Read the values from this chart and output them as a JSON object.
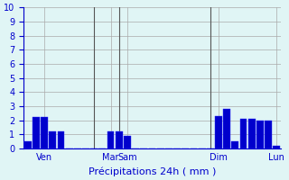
{
  "bar_values": [
    0.5,
    2.2,
    2.2,
    1.2,
    1.2,
    0,
    0,
    0,
    0,
    0,
    1.2,
    1.2,
    0.9,
    0,
    0,
    0,
    0,
    0,
    0,
    0,
    0,
    0,
    0,
    2.3,
    2.8,
    0.5,
    2.1,
    2.1,
    2.0,
    2.0,
    0.2
  ],
  "n_bars": 31,
  "day_labels": [
    "Ven",
    "Mar",
    "Sam",
    "Dim",
    "Lun"
  ],
  "day_positions": [
    2,
    10,
    12,
    23,
    30
  ],
  "vline_positions": [
    8,
    11,
    22
  ],
  "xlabel": "Précipitations 24h ( mm )",
  "ylim": [
    0,
    10
  ],
  "yticks": [
    0,
    1,
    2,
    3,
    4,
    5,
    6,
    7,
    8,
    9,
    10
  ],
  "bar_color": "#0000cc",
  "bar_edge_color": "#3333ff",
  "bg_color": "#e0f5f5",
  "grid_color": "#aaaaaa",
  "axis_label_color": "#0000cc",
  "tick_color": "#0000cc",
  "vline_color": "#555555"
}
